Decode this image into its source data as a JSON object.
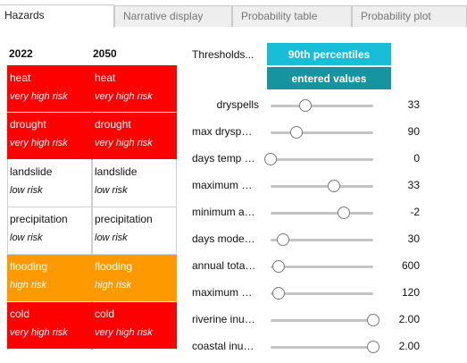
{
  "tabs": [
    {
      "label": "Hazards",
      "active": true
    },
    {
      "label": "Narrative display",
      "active": false
    },
    {
      "label": "Probability table",
      "active": false
    },
    {
      "label": "Probability plot",
      "active": false
    }
  ],
  "risk_table": {
    "year_a": "2022",
    "year_b": "2050",
    "rows": [
      {
        "name_a": "heat",
        "level_a": "very high risk",
        "name_b": "heat",
        "level_b": "very high risk"
      },
      {
        "name_a": "drought",
        "level_a": "very high risk",
        "name_b": "drought",
        "level_b": "very high risk"
      },
      {
        "name_a": "landslide",
        "level_a": "low risk",
        "name_b": "landslide",
        "level_b": "low risk"
      },
      {
        "name_a": "precipitation",
        "level_a": "low risk",
        "name_b": "precipitation",
        "level_b": "low risk"
      },
      {
        "name_a": "flooding",
        "level_a": "high risk",
        "name_b": "flooding",
        "level_b": "high risk"
      },
      {
        "name_a": "cold",
        "level_a": "very high risk",
        "name_b": "cold",
        "level_b": "very high risk"
      }
    ],
    "colors": {
      "very_high": "#ff0000",
      "high": "#ff9900",
      "low": "#ffffff"
    }
  },
  "thresholds": {
    "label": "Thresholds...",
    "percentile_button": "90th percentiles",
    "entered_button": "entered values",
    "colors": {
      "percentile": "#17bfd6",
      "entered": "#1695a0"
    }
  },
  "sliders": [
    {
      "label": "dryspells",
      "value": "33",
      "position": 0.34
    },
    {
      "label": "max drysp…",
      "value": "90",
      "position": 0.25
    },
    {
      "label": "days temp …",
      "value": "0",
      "position": 0.0
    },
    {
      "label": "maximum …",
      "value": "33",
      "position": 0.62
    },
    {
      "label": "minimum a…",
      "value": "-2",
      "position": 0.71
    },
    {
      "label": "days mode…",
      "value": "30",
      "position": 0.12
    },
    {
      "label": "annual tota…",
      "value": "600",
      "position": 0.08
    },
    {
      "label": "maximum …",
      "value": "120",
      "position": 0.08
    },
    {
      "label": "riverine inu…",
      "value": "2.00",
      "position": 1.0
    },
    {
      "label": "coastal inu…",
      "value": "2.00",
      "position": 1.0
    }
  ]
}
